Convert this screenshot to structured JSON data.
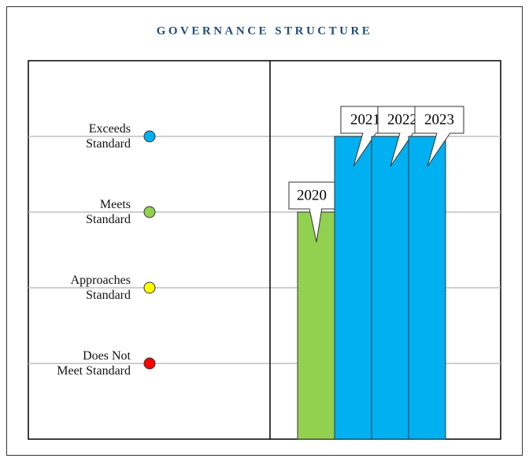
{
  "chart_data": {
    "type": "bar",
    "title": "GOVERNANCE STRUCTURE",
    "categories": [
      "2020",
      "2021",
      "2022",
      "2023"
    ],
    "values": [
      3,
      4,
      4,
      4
    ],
    "colors": [
      "#92d050",
      "#00b0f0",
      "#00b0f0",
      "#00b0f0"
    ],
    "ylim": [
      0,
      5
    ],
    "yticks": [
      {
        "value": 1,
        "label": "Does Not Meet Standard",
        "color": "#ff0000"
      },
      {
        "value": 2,
        "label": "Approaches Standard",
        "color": "#ffff00"
      },
      {
        "value": 3,
        "label": "Meets Standard",
        "color": "#92d050"
      },
      {
        "value": 4,
        "label": "Exceeds Standard",
        "color": "#00b0f0"
      }
    ],
    "grid": true
  }
}
